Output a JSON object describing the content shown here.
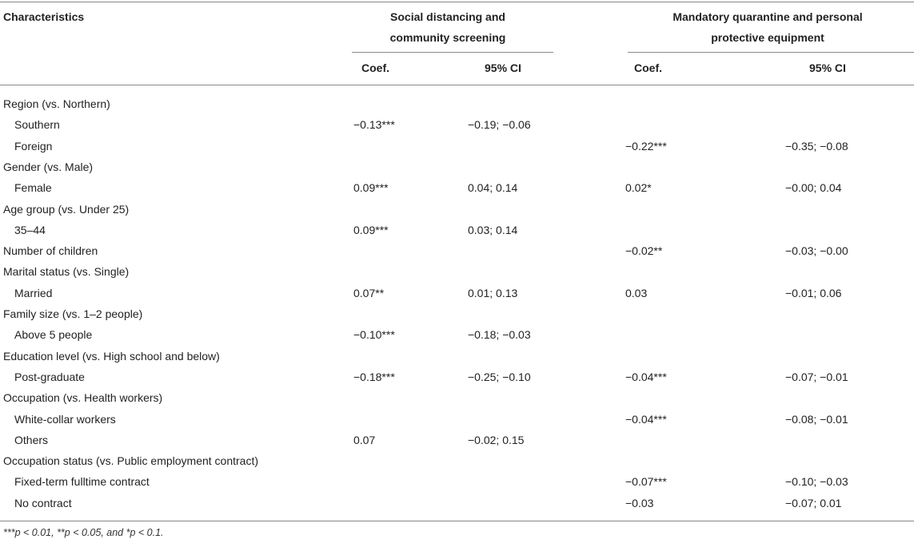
{
  "header": {
    "characteristics": "Characteristics",
    "group1_line1": "Social distancing and",
    "group1_line2": "community screening",
    "group2_line1": "Mandatory quarantine and personal",
    "group2_line2": "protective equipment",
    "coef": "Coef.",
    "ci": "95% CI"
  },
  "rows": [
    {
      "label": "Region (vs. Northern)",
      "indent": false,
      "c1": "",
      "ci1": "",
      "c2": "",
      "ci2": ""
    },
    {
      "label": "Southern",
      "indent": true,
      "c1": "−0.13***",
      "ci1": "−0.19; −0.06",
      "c2": "",
      "ci2": ""
    },
    {
      "label": "Foreign",
      "indent": true,
      "c1": "",
      "ci1": "",
      "c2": "−0.22***",
      "ci2": "−0.35; −0.08"
    },
    {
      "label": "Gender (vs. Male)",
      "indent": false,
      "c1": "",
      "ci1": "",
      "c2": "",
      "ci2": ""
    },
    {
      "label": "Female",
      "indent": true,
      "c1": "0.09***",
      "ci1": "0.04; 0.14",
      "c2": "0.02*",
      "ci2": "−0.00; 0.04"
    },
    {
      "label": "Age group (vs. Under 25)",
      "indent": false,
      "c1": "",
      "ci1": "",
      "c2": "",
      "ci2": ""
    },
    {
      "label": "35–44",
      "indent": true,
      "c1": "0.09***",
      "ci1": "0.03; 0.14",
      "c2": "",
      "ci2": ""
    },
    {
      "label": "Number of children",
      "indent": false,
      "c1": "",
      "ci1": "",
      "c2": "−0.02**",
      "ci2": "−0.03; −0.00"
    },
    {
      "label": "Marital status (vs. Single)",
      "indent": false,
      "c1": "",
      "ci1": "",
      "c2": "",
      "ci2": ""
    },
    {
      "label": "Married",
      "indent": true,
      "c1": "0.07**",
      "ci1": "0.01; 0.13",
      "c2": "0.03",
      "ci2": "−0.01; 0.06"
    },
    {
      "label": "Family size (vs. 1–2 people)",
      "indent": false,
      "c1": "",
      "ci1": "",
      "c2": "",
      "ci2": ""
    },
    {
      "label": "Above 5 people",
      "indent": true,
      "c1": "−0.10***",
      "ci1": "−0.18; −0.03",
      "c2": "",
      "ci2": ""
    },
    {
      "label": "Education level (vs. High school and below)",
      "indent": false,
      "c1": "",
      "ci1": "",
      "c2": "",
      "ci2": ""
    },
    {
      "label": "Post-graduate",
      "indent": true,
      "c1": "−0.18***",
      "ci1": "−0.25; −0.10",
      "c2": "−0.04***",
      "ci2": "−0.07; −0.01"
    },
    {
      "label": "Occupation (vs. Health workers)",
      "indent": false,
      "c1": "",
      "ci1": "",
      "c2": "",
      "ci2": ""
    },
    {
      "label": "White-collar workers",
      "indent": true,
      "c1": "",
      "ci1": "",
      "c2": "−0.04***",
      "ci2": "−0.08; −0.01"
    },
    {
      "label": "Others",
      "indent": true,
      "c1": "0.07",
      "ci1": "−0.02; 0.15",
      "c2": "",
      "ci2": ""
    },
    {
      "label": "Occupation status (vs. Public employment contract)",
      "indent": false,
      "c1": "",
      "ci1": "",
      "c2": "",
      "ci2": ""
    },
    {
      "label": "Fixed-term fulltime contract",
      "indent": true,
      "c1": "",
      "ci1": "",
      "c2": "−0.07***",
      "ci2": "−0.10; −0.03"
    },
    {
      "label": "No contract",
      "indent": true,
      "c1": "",
      "ci1": "",
      "c2": "−0.03",
      "ci2": "−0.07; 0.01"
    }
  ],
  "footnote": "***p < 0.01, **p < 0.05, and *p < 0.1."
}
